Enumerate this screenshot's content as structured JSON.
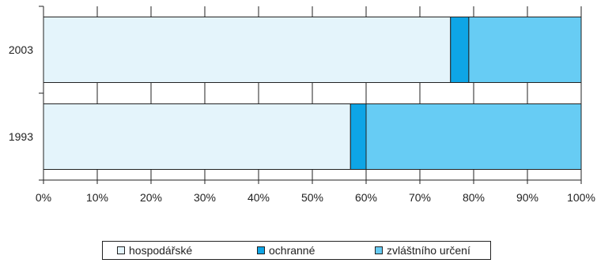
{
  "chart_data": {
    "type": "bar",
    "orientation": "horizontal",
    "stacked": true,
    "percent_stacked": true,
    "categories": [
      "2003",
      "1993"
    ],
    "series": [
      {
        "name": "hospodářské",
        "values": [
          75.7,
          57.1
        ],
        "color": "#e4f4fb"
      },
      {
        "name": "ochranné",
        "values": [
          3.4,
          2.9
        ],
        "color": "#0ea5e6"
      },
      {
        "name": "zvláštního určení",
        "values": [
          20.9,
          40.0
        ],
        "color": "#67ccf4"
      }
    ],
    "x_ticks": [
      "0%",
      "10%",
      "20%",
      "30%",
      "40%",
      "50%",
      "60%",
      "70%",
      "80%",
      "90%",
      "100%"
    ],
    "xlim": [
      0,
      100
    ],
    "grid": true,
    "legend_position": "bottom"
  }
}
